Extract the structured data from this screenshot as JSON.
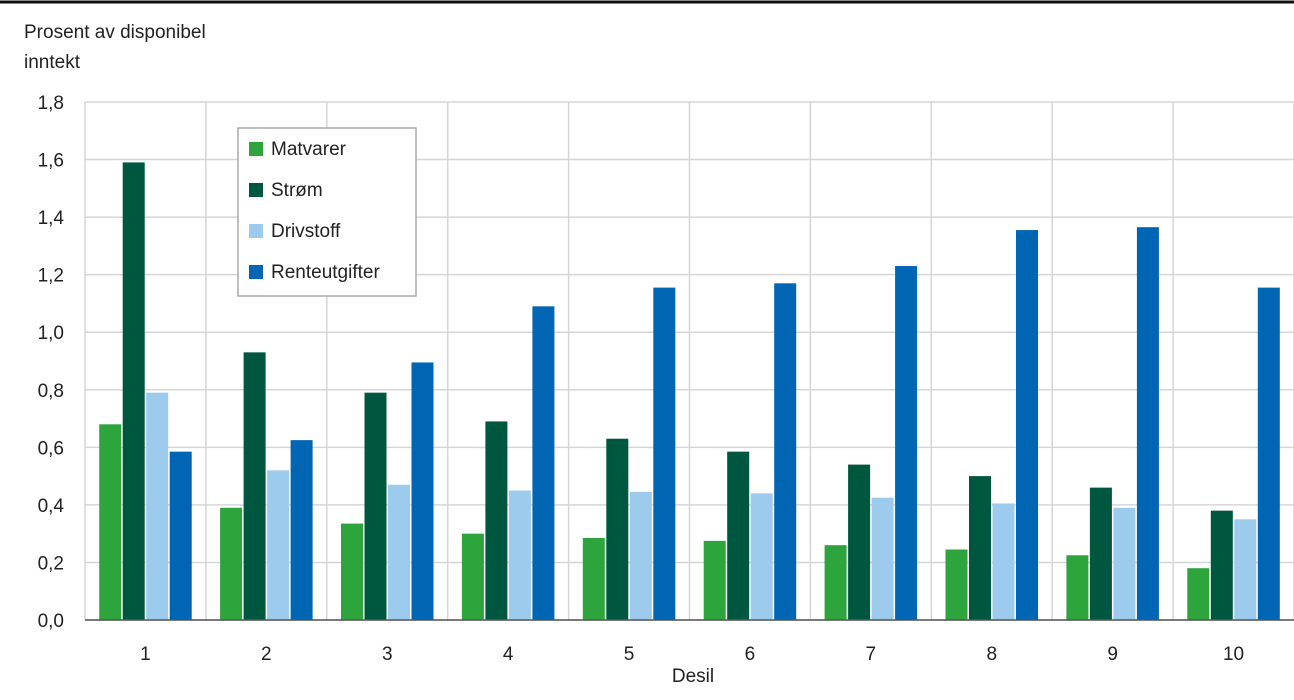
{
  "chart_data": {
    "type": "bar",
    "ylabel_lines": [
      "Prosent av disponibel",
      "inntekt"
    ],
    "xlabel": "Desil",
    "categories": [
      "1",
      "2",
      "3",
      "4",
      "5",
      "6",
      "7",
      "8",
      "9",
      "10"
    ],
    "ylim": [
      0,
      1.8
    ],
    "yticks": [
      "0,0",
      "0,2",
      "0,4",
      "0,6",
      "0,8",
      "1,0",
      "1,2",
      "1,4",
      "1,6",
      "1,8"
    ],
    "grid": true,
    "legend_position": "top-left",
    "series": [
      {
        "name": "Matvarer",
        "color": "#2ea43c",
        "values": [
          0.68,
          0.39,
          0.335,
          0.3,
          0.285,
          0.275,
          0.26,
          0.245,
          0.225,
          0.18
        ]
      },
      {
        "name": "Strøm",
        "color": "#00573f",
        "values": [
          1.59,
          0.93,
          0.79,
          0.69,
          0.63,
          0.585,
          0.54,
          0.5,
          0.46,
          0.38
        ]
      },
      {
        "name": "Drivstoff",
        "color": "#9dcbee",
        "values": [
          0.79,
          0.52,
          0.47,
          0.45,
          0.445,
          0.44,
          0.425,
          0.405,
          0.39,
          0.35
        ]
      },
      {
        "name": "Renteutgifter",
        "color": "#0066b3",
        "values": [
          0.585,
          0.625,
          0.895,
          1.09,
          1.155,
          1.17,
          1.23,
          1.355,
          1.365,
          1.155
        ]
      }
    ]
  }
}
